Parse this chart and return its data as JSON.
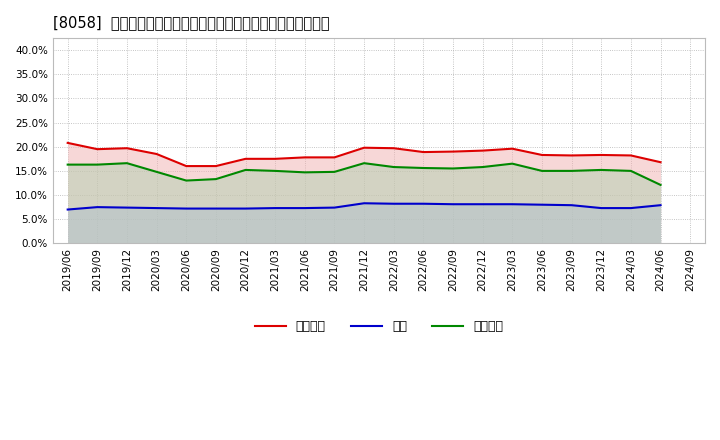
{
  "title": "[8058]  売上債権、在庫、買入債務の総資産に対する比率の推移",
  "x_labels": [
    "2019/06",
    "2019/09",
    "2019/12",
    "2020/03",
    "2020/06",
    "2020/09",
    "2020/12",
    "2021/03",
    "2021/06",
    "2021/09",
    "2021/12",
    "2022/03",
    "2022/06",
    "2022/09",
    "2022/12",
    "2023/03",
    "2023/06",
    "2023/09",
    "2023/12",
    "2024/03",
    "2024/06",
    "2024/09"
  ],
  "receivables": [
    0.208,
    0.195,
    0.197,
    0.185,
    0.16,
    0.16,
    0.175,
    0.175,
    0.178,
    0.178,
    0.198,
    0.197,
    0.189,
    0.19,
    0.192,
    0.196,
    0.183,
    0.182,
    0.183,
    0.182,
    0.168,
    null
  ],
  "inventory": [
    0.07,
    0.075,
    0.074,
    0.073,
    0.072,
    0.072,
    0.072,
    0.073,
    0.073,
    0.074,
    0.083,
    0.082,
    0.082,
    0.081,
    0.081,
    0.081,
    0.08,
    0.079,
    0.073,
    0.073,
    0.079,
    null
  ],
  "payables": [
    0.163,
    0.163,
    0.166,
    0.148,
    0.13,
    0.133,
    0.152,
    0.15,
    0.147,
    0.148,
    0.166,
    0.158,
    0.156,
    0.155,
    0.158,
    0.165,
    0.15,
    0.15,
    0.152,
    0.15,
    0.121,
    null
  ],
  "line_colors": {
    "receivables": "#dd0000",
    "inventory": "#0000cc",
    "payables": "#008800"
  },
  "fill_colors": {
    "receivables": "#f0b0b0",
    "inventory": "#b0b0e8",
    "payables": "#b0d0b0"
  },
  "legend_labels": {
    "receivables": "売上債権",
    "inventory": "在庫",
    "payables": "買入債務"
  },
  "ylim": [
    0.0,
    0.425
  ],
  "yticks": [
    0.0,
    0.05,
    0.1,
    0.15,
    0.2,
    0.25,
    0.3,
    0.35,
    0.4
  ],
  "background_color": "#ffffff",
  "grid_color": "#aaaaaa",
  "title_fontsize": 10.5
}
